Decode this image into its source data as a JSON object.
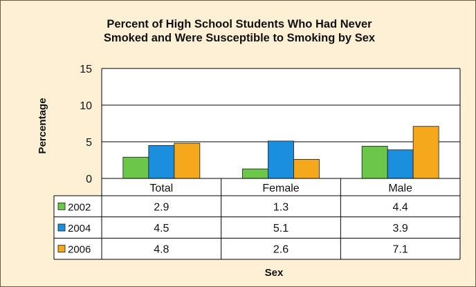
{
  "chart_data": {
    "type": "bar",
    "title_line1": "Percent of High School Students Who Had Never",
    "title_line2": "Smoked and Were Susceptible to Smoking by Sex",
    "ylabel": "Percentage",
    "xlabel": "Sex",
    "ylim": [
      0,
      15
    ],
    "yticks": [
      "0",
      "5",
      "10",
      "15"
    ],
    "categories": [
      "Total",
      "Female",
      "Male"
    ],
    "series": [
      {
        "name": "2002",
        "values": [
          2.9,
          1.3,
          4.4
        ],
        "color": "#6cc64a"
      },
      {
        "name": "2004",
        "values": [
          4.5,
          5.1,
          3.9
        ],
        "color": "#1b8fde"
      },
      {
        "name": "2006",
        "values": [
          4.8,
          2.6,
          7.1
        ],
        "color": "#f5a81c"
      }
    ],
    "table_values": [
      [
        "2.9",
        "1.3",
        "4.4"
      ],
      [
        "4.5",
        "5.1",
        "3.9"
      ],
      [
        "4.8",
        "2.6",
        "7.1"
      ]
    ],
    "legend_placement": "data-table"
  }
}
